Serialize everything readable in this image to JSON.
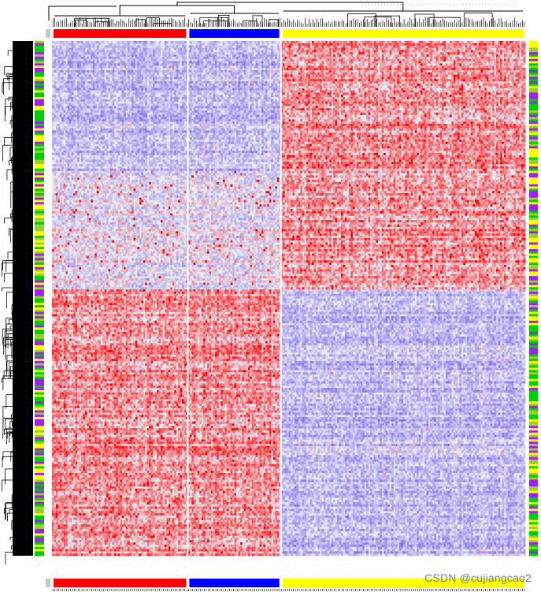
{
  "chart_data": {
    "type": "heatmap",
    "title": "",
    "xlabel": "",
    "ylabel": "",
    "color_scale": {
      "low": "#7b68ee",
      "mid": "#e9e9f2",
      "high": "#ff0000"
    },
    "column_groups": [
      {
        "color": "#ff0000",
        "columns": 70
      },
      {
        "color": "#0000ff",
        "columns": 48
      },
      {
        "color": "#ffff00",
        "columns": 126
      }
    ],
    "row_annotation_colors": [
      "#9acd32",
      "#ffff00",
      "#a020f0",
      "#00cc00"
    ],
    "row_blocks": [
      {
        "fraction": 0.25,
        "pattern": [
          "low",
          "low",
          "high"
        ]
      },
      {
        "fraction": 0.23,
        "pattern": [
          "mid",
          "mid",
          "high"
        ]
      },
      {
        "fraction": 0.52,
        "pattern": [
          "high",
          "high",
          "low"
        ]
      }
    ],
    "dendrograms": {
      "rows": true,
      "columns": true
    }
  },
  "watermark": "CSDN @cujiangcao2"
}
